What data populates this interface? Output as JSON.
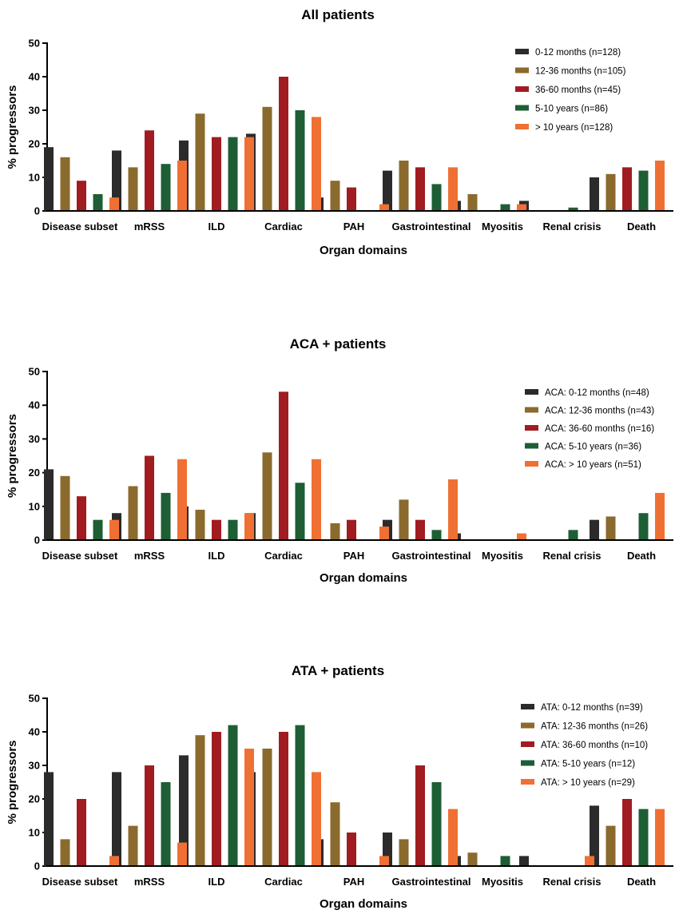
{
  "chart_data": [
    {
      "type": "bar",
      "title": "All patients",
      "xlabel": "Organ domains",
      "ylabel": "% progressors",
      "ylim": [
        0,
        50
      ],
      "yticks": [
        0,
        10,
        20,
        30,
        40,
        50
      ],
      "legend_position": "top-right",
      "categories": [
        "Disease subset",
        "mRSS",
        "ILD",
        "Cardiac",
        "PAH",
        "Gastrointestinal",
        "Myositis",
        "Renal crisis",
        "Death"
      ],
      "series": [
        {
          "name": "0-12 months (n=128)",
          "color": "#2b2b2b",
          "values": [
            19,
            18,
            21,
            23,
            4,
            12,
            3,
            3,
            10
          ]
        },
        {
          "name": "12-36 months (n=105)",
          "color": "#8b6a2e",
          "values": [
            16,
            13,
            29,
            31,
            9,
            15,
            5,
            0,
            11
          ]
        },
        {
          "name": "36-60 months (n=45)",
          "color": "#a01c21",
          "values": [
            9,
            24,
            22,
            40,
            7,
            13,
            0,
            0,
            13
          ]
        },
        {
          "name": "5-10 years (n=86)",
          "color": "#1e5e34",
          "values": [
            5,
            14,
            22,
            30,
            0,
            8,
            2,
            1,
            12
          ]
        },
        {
          "name": "> 10 years (n=128)",
          "color": "#f07033",
          "values": [
            4,
            15,
            22,
            28,
            2,
            13,
            2,
            0,
            15
          ]
        }
      ]
    },
    {
      "type": "bar",
      "title": "ACA + patients",
      "xlabel": "Organ domains",
      "ylabel": "% progressors",
      "ylim": [
        0,
        50
      ],
      "yticks": [
        0,
        10,
        20,
        30,
        40,
        50
      ],
      "legend_position": "top-right",
      "categories": [
        "Disease subset",
        "mRSS",
        "ILD",
        "Cardiac",
        "PAH",
        "Gastrointestinal",
        "Myositis",
        "Renal crisis",
        "Death"
      ],
      "series": [
        {
          "name": "ACA: 0-12 months (n=48)",
          "color": "#2b2b2b",
          "values": [
            21,
            8,
            10,
            8,
            0,
            6,
            2,
            0,
            6
          ]
        },
        {
          "name": "ACA: 12-36 months (n=43)",
          "color": "#8b6a2e",
          "values": [
            19,
            16,
            9,
            26,
            5,
            12,
            0,
            0,
            7
          ]
        },
        {
          "name": "ACA: 36-60 months (n=16)",
          "color": "#a01c21",
          "values": [
            13,
            25,
            6,
            44,
            6,
            6,
            0,
            0,
            0
          ]
        },
        {
          "name": "ACA: 5-10 years (n=36)",
          "color": "#1e5e34",
          "values": [
            6,
            14,
            6,
            17,
            0,
            3,
            0,
            3,
            8
          ]
        },
        {
          "name": "ACA: > 10 years (n=51)",
          "color": "#f07033",
          "values": [
            6,
            24,
            8,
            24,
            4,
            18,
            2,
            0,
            14
          ]
        }
      ]
    },
    {
      "type": "bar",
      "title": "ATA + patients",
      "xlabel": "Organ domains",
      "ylabel": "% progressors",
      "ylim": [
        0,
        50
      ],
      "yticks": [
        0,
        10,
        20,
        30,
        40,
        50
      ],
      "legend_position": "top-right",
      "categories": [
        "Disease subset",
        "mRSS",
        "ILD",
        "Cardiac",
        "PAH",
        "Gastrointestinal",
        "Myositis",
        "Renal crisis",
        "Death"
      ],
      "series": [
        {
          "name": "ATA: 0-12 months (n=39)",
          "color": "#2b2b2b",
          "values": [
            28,
            28,
            33,
            28,
            8,
            10,
            3,
            3,
            18
          ]
        },
        {
          "name": "ATA: 12-36 months (n=26)",
          "color": "#8b6a2e",
          "values": [
            8,
            12,
            39,
            35,
            19,
            8,
            4,
            0,
            12
          ]
        },
        {
          "name": "ATA: 36-60 months (n=10)",
          "color": "#a01c21",
          "values": [
            20,
            30,
            40,
            40,
            10,
            30,
            0,
            0,
            20
          ]
        },
        {
          "name": "ATA: 5-10 years (n=12)",
          "color": "#1e5e34",
          "values": [
            0,
            25,
            42,
            42,
            0,
            25,
            3,
            0,
            17
          ]
        },
        {
          "name": "ATA: > 10 years (n=29)",
          "color": "#f07033",
          "values": [
            3,
            7,
            35,
            28,
            3,
            17,
            0,
            3,
            17
          ]
        }
      ]
    }
  ]
}
